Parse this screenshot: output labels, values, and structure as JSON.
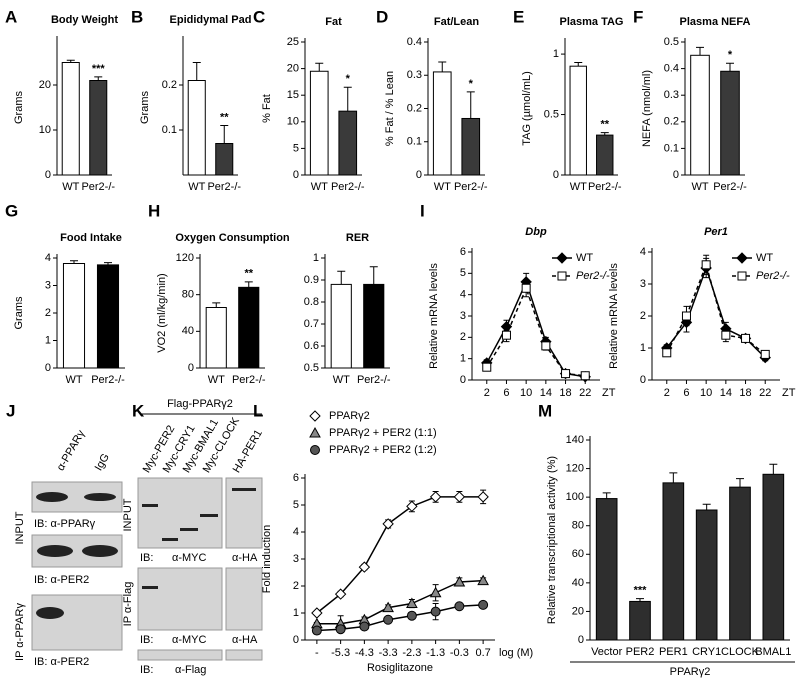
{
  "chart_data": [
    {
      "type": "bar",
      "panel": "A",
      "title": "Body Weight",
      "ylabel": "Grams",
      "categories": [
        "WT",
        "Per2-/-"
      ],
      "values": [
        25,
        21
      ],
      "errors": [
        0.5,
        0.8
      ],
      "colors": [
        "#ffffff",
        "#3a3a3a"
      ],
      "annotations": [
        {
          "category": "Per2-/-",
          "text": "***"
        }
      ],
      "ylim": [
        0,
        30
      ],
      "yticks": [
        0,
        10,
        20
      ]
    },
    {
      "type": "bar",
      "panel": "B",
      "title": "Epididymal Pad",
      "ylabel": "Grams",
      "categories": [
        "WT",
        "Per2-/-"
      ],
      "values": [
        0.21,
        0.07
      ],
      "errors": [
        0.04,
        0.04
      ],
      "colors": [
        "#ffffff",
        "#3a3a3a"
      ],
      "annotations": [
        {
          "category": "Per2-/-",
          "text": "**"
        }
      ],
      "ylim": [
        0,
        0.3
      ],
      "yticks": [
        0.1,
        0.2
      ]
    },
    {
      "type": "bar",
      "panel": "C",
      "title": "Fat",
      "ylabel": "% Fat",
      "categories": [
        "WT",
        "Per2-/-"
      ],
      "values": [
        19.5,
        12
      ],
      "errors": [
        1.5,
        4.5
      ],
      "colors": [
        "#ffffff",
        "#3a3a3a"
      ],
      "annotations": [
        {
          "category": "Per2-/-",
          "text": "*"
        }
      ],
      "ylim": [
        0,
        25
      ],
      "yticks": [
        0,
        5,
        10,
        15,
        20,
        25
      ]
    },
    {
      "type": "bar",
      "panel": "D",
      "title": "Fat/Lean",
      "ylabel": "% Fat / % Lean",
      "categories": [
        "WT",
        "Per2-/-"
      ],
      "values": [
        0.31,
        0.17
      ],
      "errors": [
        0.03,
        0.08
      ],
      "colors": [
        "#ffffff",
        "#3a3a3a"
      ],
      "annotations": [
        {
          "category": "Per2-/-",
          "text": "*"
        }
      ],
      "ylim": [
        0,
        0.4
      ],
      "yticks": [
        0,
        0.1,
        0.2,
        0.3,
        0.4
      ]
    },
    {
      "type": "bar",
      "panel": "E",
      "title": "Plasma TAG",
      "ylabel": "TAG (µmol/mL)",
      "categories": [
        "WT",
        "Per2-/-"
      ],
      "values": [
        0.9,
        0.33
      ],
      "errors": [
        0.03,
        0.02
      ],
      "colors": [
        "#ffffff",
        "#3a3a3a"
      ],
      "annotations": [
        {
          "category": "Per2-/-",
          "text": "**"
        }
      ],
      "ylim": [
        0,
        1.1
      ],
      "yticks": [
        0,
        0.5,
        1
      ]
    },
    {
      "type": "bar",
      "panel": "F",
      "title": "Plasma NEFA",
      "ylabel": "NEFA (nmol/ml)",
      "categories": [
        "WT",
        "Per2-/-"
      ],
      "values": [
        0.45,
        0.39
      ],
      "errors": [
        0.03,
        0.03
      ],
      "colors": [
        "#ffffff",
        "#3a3a3a"
      ],
      "annotations": [
        {
          "category": "Per2-/-",
          "text": "*"
        }
      ],
      "ylim": [
        0,
        0.5
      ],
      "yticks": [
        0,
        0.1,
        0.2,
        0.3,
        0.4,
        0.5
      ]
    },
    {
      "type": "bar",
      "panel": "G",
      "title": "Food Intake",
      "ylabel": "Grams",
      "categories": [
        "WT",
        "Per2-/-"
      ],
      "values": [
        3.8,
        3.75
      ],
      "errors": [
        0.1,
        0.08
      ],
      "colors": [
        "#ffffff",
        "#000000"
      ],
      "ylim": [
        0,
        4
      ],
      "yticks": [
        0,
        1,
        2,
        3,
        4
      ]
    },
    {
      "type": "bar",
      "panel": "H",
      "title": "Oxygen Consumption",
      "ylabel": "VO2 (ml/kg/min)",
      "categories": [
        "WT",
        "Per2-/-"
      ],
      "values": [
        66,
        88
      ],
      "errors": [
        5,
        6
      ],
      "colors": [
        "#ffffff",
        "#000000"
      ],
      "annotations": [
        {
          "category": "Per2-/-",
          "text": "**"
        }
      ],
      "ylim": [
        0,
        120
      ],
      "yticks": [
        0,
        40,
        80,
        120
      ]
    },
    {
      "type": "bar",
      "title": "RER",
      "categories": [
        "WT",
        "Per2-/-"
      ],
      "values": [
        0.88,
        0.88
      ],
      "errors": [
        0.06,
        0.08
      ],
      "colors": [
        "#ffffff",
        "#000000"
      ],
      "ylim": [
        0.5,
        1
      ],
      "yticks": [
        0.5,
        0.6,
        0.7,
        0.8,
        0.9,
        1
      ]
    },
    {
      "type": "line",
      "panel": "I",
      "title": "Dbp",
      "ylabel": "Relative mRNA levels",
      "xlabel": "ZT",
      "x": [
        2,
        6,
        10,
        14,
        18,
        22
      ],
      "xlim": [
        -1,
        25
      ],
      "xticks": [
        2,
        6,
        10,
        14,
        18,
        22
      ],
      "ylim": [
        0,
        6
      ],
      "yticks": [
        0,
        1,
        2,
        3,
        4,
        5,
        6
      ],
      "series": [
        {
          "name": "WT",
          "color": "#000000",
          "marker": "diamond",
          "dash": false,
          "values": [
            0.8,
            2.5,
            4.6,
            1.8,
            0.3,
            0.15
          ],
          "errors": [
            0.15,
            0.3,
            0.4,
            0.2,
            0.05,
            0.05
          ]
        },
        {
          "name": "Per2-/-",
          "color": "#ffffff",
          "marker": "square",
          "dash": true,
          "values": [
            0.6,
            2.1,
            4.3,
            1.6,
            0.3,
            0.2
          ],
          "errors": [
            0.15,
            0.3,
            0.4,
            0.2,
            0.05,
            0.05
          ]
        }
      ]
    },
    {
      "type": "line",
      "title": "Per1",
      "ylabel": "Relative mRNA levels",
      "xlabel": "ZT",
      "x": [
        2,
        6,
        10,
        14,
        18,
        22
      ],
      "xlim": [
        -1,
        25
      ],
      "xticks": [
        2,
        6,
        10,
        14,
        18,
        22
      ],
      "ylim": [
        0,
        4
      ],
      "yticks": [
        0,
        1,
        2,
        3,
        4
      ],
      "series": [
        {
          "name": "WT",
          "color": "#000000",
          "marker": "diamond",
          "dash": false,
          "values": [
            1.0,
            1.8,
            3.5,
            1.6,
            1.3,
            0.7
          ],
          "errors": [
            0.1,
            0.3,
            0.3,
            0.2,
            0.1,
            0.1
          ]
        },
        {
          "name": "Per2-/-",
          "color": "#ffffff",
          "marker": "square",
          "dash": true,
          "values": [
            0.85,
            2.0,
            3.6,
            1.4,
            1.3,
            0.8
          ],
          "errors": [
            0.1,
            0.3,
            0.3,
            0.2,
            0.1,
            0.1
          ]
        }
      ]
    },
    {
      "type": "line",
      "panel": "L",
      "ylabel": "Fold induction",
      "xlabel": "Rosiglitazone",
      "xunit": "log (M)",
      "categories": [
        "-",
        "-5.3",
        "-4.3",
        "-3.3",
        "-2.3",
        "-1.3",
        "-0.3",
        "0.7"
      ],
      "ylim": [
        0,
        6
      ],
      "yticks": [
        0,
        1,
        2,
        3,
        4,
        5,
        6
      ],
      "series": [
        {
          "name": "PPARγ2",
          "color": "#ffffff",
          "marker": "diamond",
          "dash": false,
          "values": [
            1.0,
            1.7,
            2.7,
            4.3,
            4.95,
            5.3,
            5.3,
            5.3
          ],
          "errors": [
            0.05,
            0.1,
            0.1,
            0.15,
            0.2,
            0.2,
            0.2,
            0.25
          ]
        },
        {
          "name": "PPARγ2 + PER2 (1:1)",
          "color": "#888888",
          "marker": "triangle",
          "dash": false,
          "values": [
            0.6,
            0.6,
            0.75,
            1.2,
            1.35,
            1.75,
            2.15,
            2.2
          ],
          "errors": [
            0.05,
            0.3,
            0.1,
            0.1,
            0.15,
            0.3,
            0.15,
            0.1
          ]
        },
        {
          "name": "PPARγ2 + PER2 (1:2)",
          "color": "#555555",
          "marker": "circle",
          "dash": false,
          "values": [
            0.35,
            0.4,
            0.5,
            0.75,
            0.9,
            1.05,
            1.25,
            1.3
          ],
          "errors": [
            0.05,
            0.05,
            0.1,
            0.1,
            0.1,
            0.3,
            0.1,
            0.1
          ]
        }
      ]
    },
    {
      "type": "bar",
      "panel": "M",
      "ylabel": "Relative transcriptional activity (%)",
      "group_label": "PPARγ2",
      "categories": [
        "Vector",
        "PER2",
        "PER1",
        "CRY1",
        "CLOCK",
        "BMAL1"
      ],
      "values": [
        99,
        27,
        110,
        91,
        107,
        116
      ],
      "errors": [
        4,
        2,
        7,
        4,
        6,
        7
      ],
      "colors": [
        "#2e2e2e",
        "#2e2e2e",
        "#2e2e2e",
        "#2e2e2e",
        "#2e2e2e",
        "#2e2e2e"
      ],
      "annotations": [
        {
          "category": "PER2",
          "text": "***"
        }
      ],
      "ylim": [
        0,
        140
      ],
      "yticks": [
        0,
        20,
        40,
        60,
        80,
        100,
        120,
        140
      ]
    }
  ],
  "blot_J": {
    "panel": "J",
    "lanes": [
      "α-PPARγ",
      "IgG"
    ],
    "rows": [
      "INPUT",
      "IP α-PPARγ"
    ],
    "probes": [
      "IB: α-PPARγ",
      "IB: α-PER2",
      "IB: α-PER2"
    ]
  },
  "blot_K": {
    "panel": "K",
    "header": "Flag-PPARγ2",
    "lanes": [
      "Myc-PER2",
      "Myc-CRY1",
      "Myc-BMAL1",
      "Myc-CLOCK",
      "HA-PER1"
    ],
    "rows": [
      "INPUT",
      "IP α-Flag"
    ],
    "ib": "IB:",
    "probes": [
      "α-MYC",
      "α-HA",
      "α-Flag"
    ]
  }
}
